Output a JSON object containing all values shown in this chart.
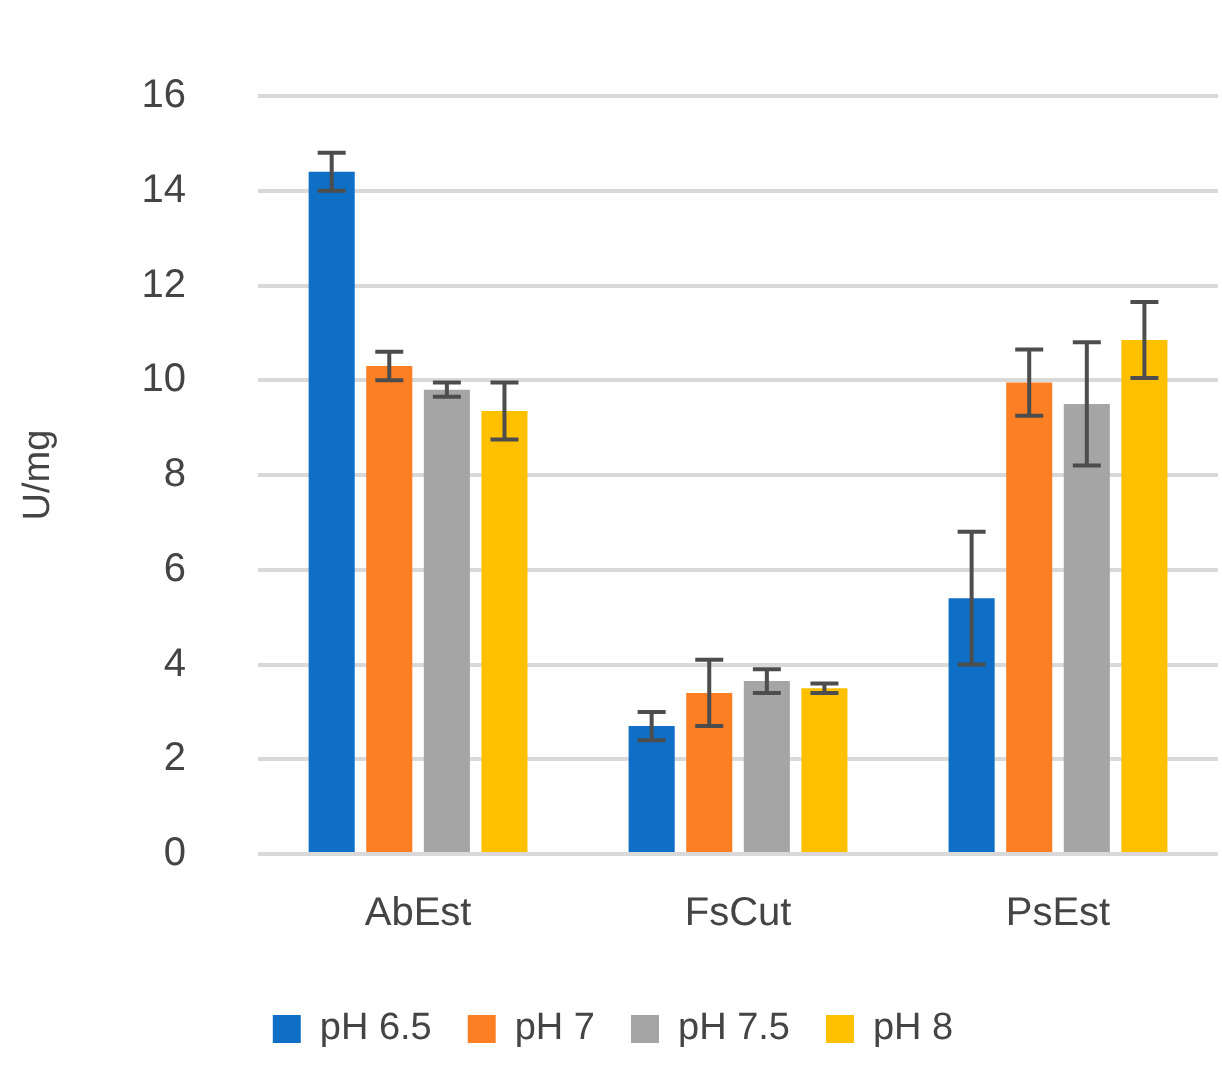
{
  "chart_data": {
    "type": "bar",
    "ylabel": "U/mg",
    "categories": [
      "AbEst",
      "FsCut",
      "PsEst"
    ],
    "series": [
      {
        "name": "pH 6.5",
        "color": "#0f6fc6",
        "values": [
          14.4,
          2.7,
          5.4
        ],
        "errors": [
          0.4,
          0.3,
          1.4
        ]
      },
      {
        "name": "pH 7",
        "color": "#fd7f24",
        "values": [
          10.3,
          3.4,
          9.95
        ],
        "errors": [
          0.3,
          0.7,
          0.7
        ]
      },
      {
        "name": "pH 7.5",
        "color": "#a5a5a5",
        "values": [
          9.8,
          3.65,
          9.5
        ],
        "errors": [
          0.15,
          0.25,
          1.3
        ]
      },
      {
        "name": "pH 8",
        "color": "#ffc000",
        "values": [
          9.35,
          3.5,
          10.85
        ],
        "errors": [
          0.6,
          0.1,
          0.8
        ]
      }
    ],
    "ylim": [
      0,
      16
    ],
    "yticks": [
      0,
      2,
      4,
      6,
      8,
      10,
      12,
      14,
      16
    ],
    "grid": "y",
    "legend": "bottom"
  }
}
